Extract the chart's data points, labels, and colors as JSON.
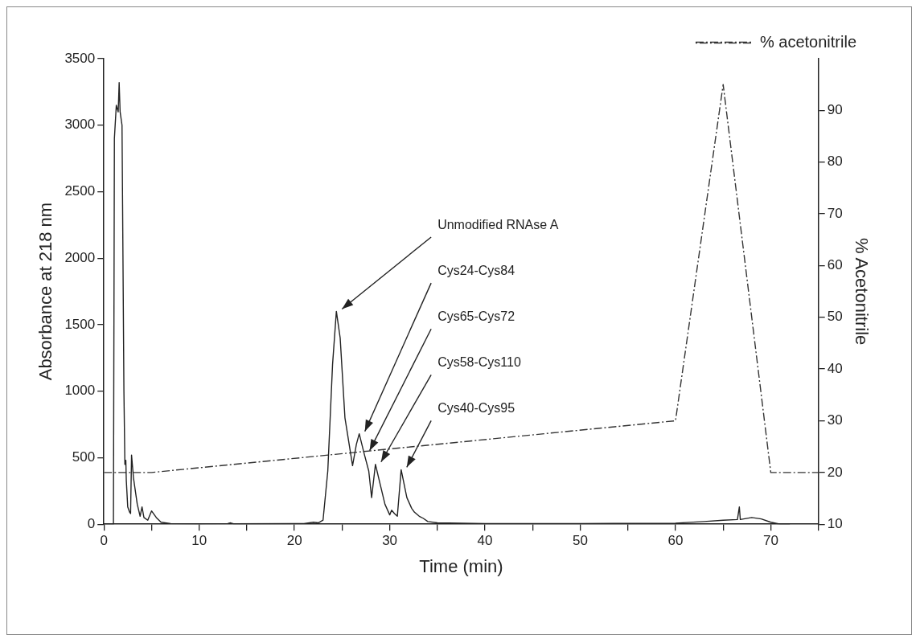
{
  "chart_data": {
    "type": "line",
    "xlabel": "Time (min)",
    "ylabel": "Absorbance at 218 nm",
    "y2label": "% Acetonitrile",
    "xlim": [
      0,
      75
    ],
    "xticks": [
      0,
      {
        "value": 5,
        "label": null
      },
      10,
      {
        "value": 15,
        "label": null
      },
      20,
      {
        "value": 25,
        "label": null
      },
      30,
      {
        "value": 35,
        "label": null
      },
      40,
      {
        "value": 45,
        "label": null
      },
      50,
      {
        "value": 55,
        "label": null
      },
      60,
      {
        "value": 65,
        "label": null
      },
      70,
      {
        "value": 75,
        "label": null
      }
    ],
    "ylim": [
      0,
      3500
    ],
    "yticks": [
      0,
      500,
      1000,
      1500,
      2000,
      2500,
      3000,
      3500
    ],
    "y2lim": [
      10,
      100
    ],
    "y2ticks": [
      10,
      20,
      30,
      40,
      50,
      60,
      70,
      80,
      90
    ],
    "grid": false,
    "legend": "top right",
    "marker": "none",
    "series": [
      {
        "color": "#222222",
        "line_style": "solid",
        "x": [
          0,
          1.0,
          1.1,
          1.3,
          1.5,
          1.6,
          1.7,
          1.9,
          2.1,
          2.2,
          2.3,
          2.35,
          2.5,
          2.7,
          2.8,
          2.9,
          3.1,
          3.5,
          3.8,
          4.0,
          4.2,
          4.6,
          5.0,
          5.5,
          6,
          7,
          10,
          13,
          13.3,
          13.6,
          20,
          21,
          22,
          22.5,
          23,
          23.5,
          24,
          24.4,
          24.8,
          25.3,
          26.1,
          26.5,
          26.8,
          27.3,
          27.8,
          28.1,
          28.5,
          29,
          29.5,
          30,
          30.2,
          30.5,
          30.8,
          31.2,
          31.8,
          32.3,
          32.6,
          33.1,
          33.5,
          34,
          35,
          40,
          50,
          60,
          63,
          65,
          66.5,
          66.7,
          66.8,
          68,
          69,
          70,
          71,
          72
        ],
        "values": [
          0,
          0,
          2900,
          3150,
          3100,
          3320,
          3100,
          3000,
          1000,
          450,
          480,
          330,
          130,
          90,
          80,
          520,
          350,
          150,
          60,
          130,
          50,
          30,
          100,
          50,
          15,
          5,
          3,
          5,
          10,
          3,
          5,
          5,
          15,
          10,
          30,
          400,
          1200,
          1600,
          1400,
          800,
          440,
          600,
          680,
          535,
          400,
          200,
          450,
          300,
          150,
          70,
          105,
          80,
          60,
          410,
          200,
          120,
          90,
          60,
          45,
          20,
          10,
          5,
          5,
          8,
          20,
          30,
          35,
          130,
          35,
          50,
          40,
          15,
          0,
          0
        ]
      },
      {
        "name": "% acetonitrile",
        "color": "#333333",
        "line_style": "dashed",
        "axis": "y2",
        "x": [
          0,
          5,
          60,
          65,
          70,
          75
        ],
        "values": [
          20,
          20,
          30,
          95,
          20,
          20
        ]
      }
    ],
    "annotations": [
      {
        "text": "Unmodified RNAse A",
        "x": 24.4,
        "y": 1600
      },
      {
        "text": "Cys24-Cys84",
        "x": 26.8,
        "y": 680
      },
      {
        "text": "Cys65-Cys72",
        "x": 27.3,
        "y": 535
      },
      {
        "text": "Cys58-Cys110",
        "x": 28.5,
        "y": 450
      },
      {
        "text": "Cys40-Cys95",
        "x": 31.2,
        "y": 410
      }
    ]
  }
}
